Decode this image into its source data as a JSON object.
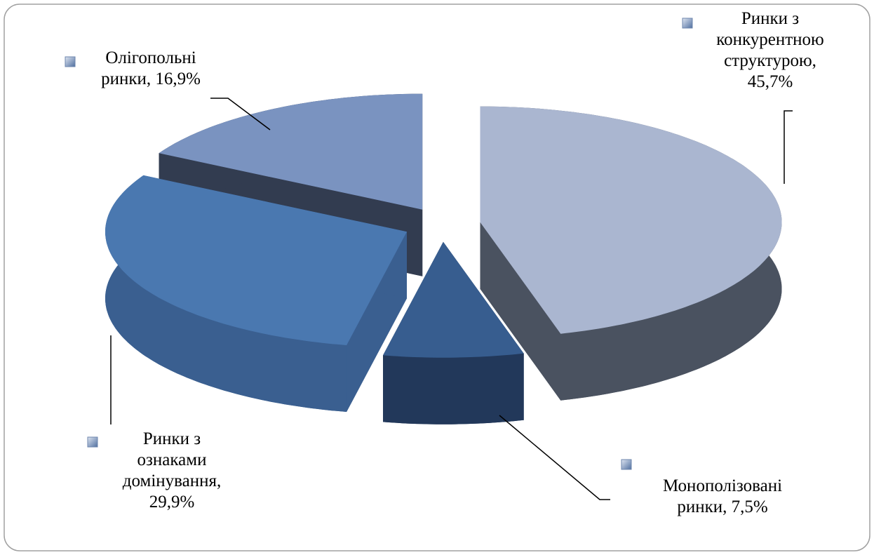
{
  "chart_data": {
    "type": "pie3d",
    "values": [
      45.7,
      7.5,
      29.9,
      16.9
    ],
    "value_labels": [
      [
        "Ринки з",
        "конкурентною",
        "структурою,",
        "45,7%"
      ],
      [
        "Монополізовані",
        "ринки, 7,5%"
      ],
      [
        "Ринки з",
        "ознаками",
        "домінування,",
        "29,9%"
      ],
      [
        "Олігопольні",
        "ринки, 16,9%"
      ]
    ],
    "colors": [
      "#aab6d0",
      "#375d8f",
      "#4a78b0",
      "#7a93c0"
    ],
    "side_colors": [
      "#4a5260",
      "#22385a",
      "#3a5f90",
      "#323c50"
    ]
  }
}
